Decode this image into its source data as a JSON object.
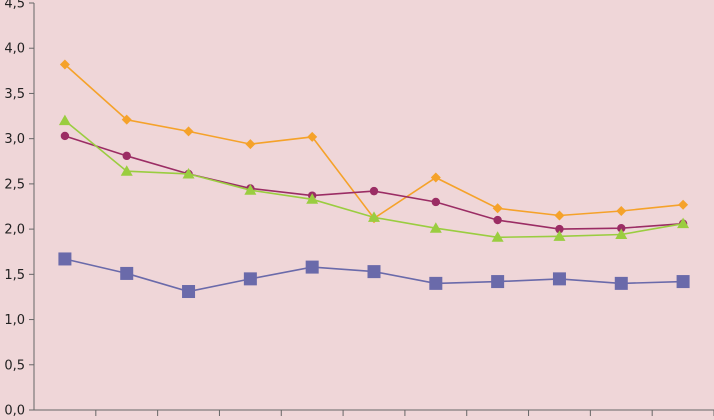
{
  "chart_data": {
    "type": "line",
    "title": "",
    "xlabel": "",
    "ylabel": "",
    "ylim": [
      0,
      4.5
    ],
    "y_ticks": [
      "0,0",
      "0,5",
      "1,0",
      "1,5",
      "2,0",
      "2,5",
      "3,0",
      "3,5",
      "4,0",
      "4,5"
    ],
    "x_category_count": 11,
    "grid": false,
    "legend": "none",
    "background": "#efd6d8",
    "series": [
      {
        "color": "#f5a22a",
        "marker": "diamond",
        "values": [
          3.82,
          3.21,
          3.08,
          2.94,
          3.02,
          2.12,
          2.57,
          2.23,
          2.15,
          2.2,
          2.27
        ]
      },
      {
        "color": "#9b2d64",
        "marker": "circle",
        "values": [
          3.03,
          2.81,
          2.61,
          2.45,
          2.37,
          2.42,
          2.3,
          2.1,
          2.0,
          2.01,
          2.06
        ]
      },
      {
        "color": "#9acd40",
        "marker": "triangle",
        "values": [
          3.2,
          2.64,
          2.61,
          2.43,
          2.33,
          2.13,
          2.01,
          1.91,
          1.92,
          1.94,
          2.06
        ]
      },
      {
        "color": "#6a6aaa",
        "marker": "square",
        "values": [
          1.67,
          1.51,
          1.31,
          1.45,
          1.58,
          1.53,
          1.4,
          1.42,
          1.45,
          1.4,
          1.42
        ]
      }
    ]
  }
}
